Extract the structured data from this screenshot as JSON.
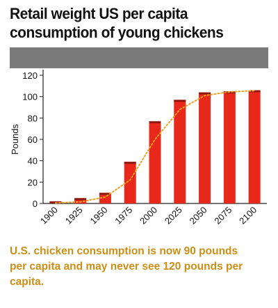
{
  "title_lines": [
    "Retail weight US per capita",
    "consumption of young chickens"
  ],
  "note_lines": [
    "U.S. chicken consumption is now 90 pounds",
    "per capita and may never see 120 pounds per",
    "capita."
  ],
  "colors": {
    "bar": "#e8281a",
    "bar_top": "#8f1a10",
    "trend": "#f5a01e",
    "band": "#7a7a7a",
    "note": "#cc8e14"
  },
  "chart_data": {
    "type": "bar",
    "title": "Retail weight US per capita consumption of young chickens",
    "xlabel": "",
    "ylabel": "Pounds",
    "categories": [
      "1900",
      "1925",
      "1950",
      "1975",
      "2000",
      "2025",
      "2050",
      "2075",
      "2100"
    ],
    "values": [
      2,
      5,
      10,
      39,
      77,
      97,
      104,
      105,
      106
    ],
    "trend_values": [
      0.5,
      1.5,
      6,
      22,
      60,
      88,
      101,
      104.5,
      105.5
    ],
    "ylim": [
      0,
      120
    ],
    "yticks": [
      0,
      20,
      40,
      60,
      80,
      100,
      120
    ],
    "grid": false,
    "legend": "none"
  }
}
